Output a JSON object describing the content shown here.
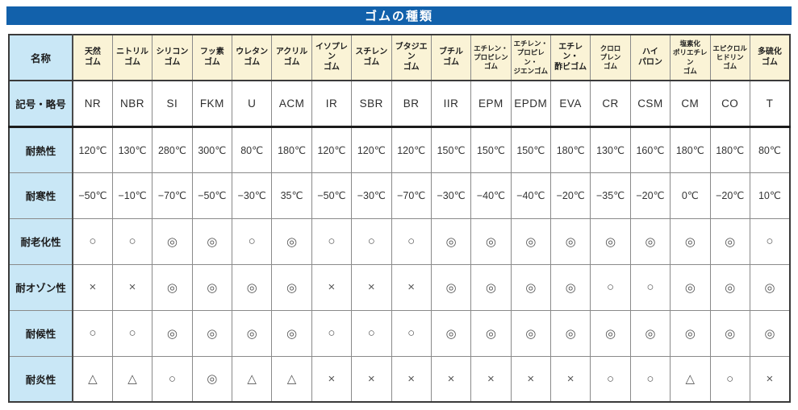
{
  "title": "ゴムの種類",
  "colors": {
    "title_bar": "#1261ab",
    "label_bg": "#c9e7f6",
    "header_bg": "#faf3d6",
    "grid": "#8a8a8a",
    "heavy_line": "#1c1c1c"
  },
  "table": {
    "corner_label": "名称",
    "columns": [
      {
        "name": "天然ゴム",
        "lines": [
          "天然",
          "ゴム"
        ]
      },
      {
        "name": "ニトリルゴム",
        "lines": [
          "ニトリル",
          "ゴム"
        ]
      },
      {
        "name": "シリコンゴム",
        "lines": [
          "シリコン",
          "ゴム"
        ]
      },
      {
        "name": "フッ素ゴム",
        "lines": [
          "フッ素",
          "ゴム"
        ]
      },
      {
        "name": "ウレタンゴム",
        "lines": [
          "ウレタン",
          "ゴム"
        ]
      },
      {
        "name": "アクリルゴム",
        "lines": [
          "アクリル",
          "ゴム"
        ]
      },
      {
        "name": "イソプレンゴム",
        "lines": [
          "イソプレン",
          "ゴム"
        ]
      },
      {
        "name": "スチレンゴム",
        "lines": [
          "スチレン",
          "ゴム"
        ]
      },
      {
        "name": "ブタジエンゴム",
        "lines": [
          "ブタジエン",
          "ゴム"
        ]
      },
      {
        "name": "ブチルゴム",
        "lines": [
          "ブチル",
          "ゴム"
        ]
      },
      {
        "name": "エチレン・プロピレンゴム",
        "lines": [
          "エチレン・",
          "プロピレン",
          "ゴム"
        ]
      },
      {
        "name": "エチレン・プロピレン・ジエンゴム",
        "lines": [
          "エチレン・",
          "プロピレン・",
          "ジエンゴム"
        ]
      },
      {
        "name": "エチレン・酢ビゴム",
        "lines": [
          "エチレン・",
          "酢ビゴム"
        ]
      },
      {
        "name": "クロロプレンゴム",
        "lines": [
          "クロロ",
          "プレン",
          "ゴム"
        ]
      },
      {
        "name": "ハイパロン",
        "lines": [
          "ハイ",
          "パロン"
        ]
      },
      {
        "name": "塩素化ポリエチレンゴム",
        "lines": [
          "塩素化",
          "ポリエチレン",
          "ゴム"
        ]
      },
      {
        "name": "エピクロルヒドリンゴム",
        "lines": [
          "エピクロル",
          "ヒドリン",
          "ゴム"
        ]
      },
      {
        "name": "多硫化ゴム",
        "lines": [
          "多硫化",
          "ゴム"
        ]
      }
    ],
    "rows": [
      {
        "type": "symbol",
        "label": "記号・略号",
        "values": [
          "NR",
          "NBR",
          "SI",
          "FKM",
          "U",
          "ACM",
          "IR",
          "SBR",
          "BR",
          "IIR",
          "EPM",
          "EPDM",
          "EVA",
          "CR",
          "CSM",
          "CM",
          "CO",
          "T"
        ]
      },
      {
        "type": "temp",
        "label": "耐熱性",
        "values": [
          "120℃",
          "130℃",
          "280℃",
          "300℃",
          "80℃",
          "180℃",
          "120℃",
          "120℃",
          "120℃",
          "150℃",
          "150℃",
          "150℃",
          "180℃",
          "130℃",
          "160℃",
          "180℃",
          "180℃",
          "80℃"
        ]
      },
      {
        "type": "temp",
        "label": "耐寒性",
        "values": [
          "−50℃",
          "−10℃",
          "−70℃",
          "−50℃",
          "−30℃",
          "35℃",
          "−50℃",
          "−30℃",
          "−70℃",
          "−30℃",
          "−40℃",
          "−40℃",
          "−20℃",
          "−35℃",
          "−20℃",
          "0℃",
          "−20℃",
          "10℃"
        ]
      },
      {
        "type": "mark",
        "label": "耐老化性",
        "values": [
          "○",
          "○",
          "◎",
          "◎",
          "○",
          "◎",
          "○",
          "○",
          "○",
          "◎",
          "◎",
          "◎",
          "◎",
          "◎",
          "◎",
          "◎",
          "◎",
          "○"
        ]
      },
      {
        "type": "mark",
        "label": "耐オゾン性",
        "values": [
          "×",
          "×",
          "◎",
          "◎",
          "◎",
          "◎",
          "×",
          "×",
          "×",
          "◎",
          "◎",
          "◎",
          "◎",
          "○",
          "○",
          "◎",
          "◎",
          "◎"
        ]
      },
      {
        "type": "mark",
        "label": "耐候性",
        "values": [
          "○",
          "○",
          "◎",
          "◎",
          "◎",
          "◎",
          "○",
          "○",
          "○",
          "◎",
          "◎",
          "◎",
          "◎",
          "◎",
          "◎",
          "◎",
          "◎",
          "◎"
        ]
      },
      {
        "type": "mark",
        "label": "耐炎性",
        "values": [
          "△",
          "△",
          "○",
          "◎",
          "△",
          "△",
          "×",
          "×",
          "×",
          "×",
          "×",
          "×",
          "×",
          "○",
          "○",
          "△",
          "○",
          "×"
        ]
      }
    ]
  }
}
